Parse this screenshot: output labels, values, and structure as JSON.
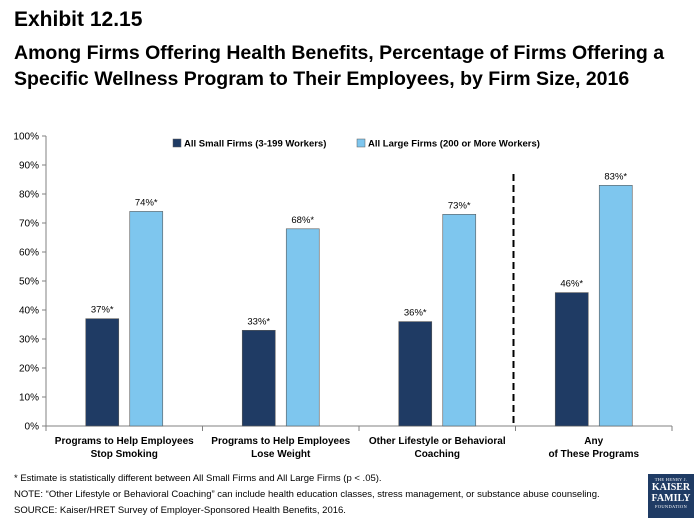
{
  "header": {
    "exhibit": "Exhibit 12.15",
    "title": "Among Firms Offering Health Benefits, Percentage of Firms Offering a Specific Wellness Program to Their Employees, by Firm Size, 2016"
  },
  "chart_data": {
    "type": "bar",
    "categories": [
      [
        "Programs to Help Employees",
        "Stop Smoking"
      ],
      [
        "Programs to Help Employees",
        "Lose Weight"
      ],
      [
        "Other Lifestyle or Behavioral",
        "Coaching"
      ],
      [
        "Any",
        "of These Programs"
      ]
    ],
    "series": [
      {
        "name": "All Small Firms (3-199 Workers)",
        "color": "#1f3b64",
        "values": [
          37,
          33,
          36,
          46
        ],
        "labels": [
          "37%*",
          "33%*",
          "36%*",
          "46%*"
        ]
      },
      {
        "name": "All Large Firms (200 or More Workers)",
        "color": "#7ec6ee",
        "values": [
          74,
          68,
          73,
          83
        ],
        "labels": [
          "74%*",
          "68%*",
          "73%*",
          "83%*"
        ]
      }
    ],
    "ylim": [
      0,
      100
    ],
    "yticks": [
      "0%",
      "10%",
      "20%",
      "30%",
      "40%",
      "50%",
      "60%",
      "70%",
      "80%",
      "90%",
      "100%"
    ],
    "legend_position": "top",
    "grid": false,
    "divider_before_category": 3
  },
  "footer": {
    "note1": "* Estimate is statistically different between All Small Firms and All Large Firms (p < .05).",
    "note2": "NOTE: “Other Lifestyle or Behavioral Coaching” can include health education classes, stress management, or substance abuse counseling.",
    "source": "SOURCE:  Kaiser/HRET Survey of Employer-Sponsored Health Benefits, 2016."
  },
  "logo": {
    "line1": "THE HENRY J.",
    "line2": "KAISER",
    "line3": "FAMILY",
    "line4": "FOUNDATION"
  }
}
